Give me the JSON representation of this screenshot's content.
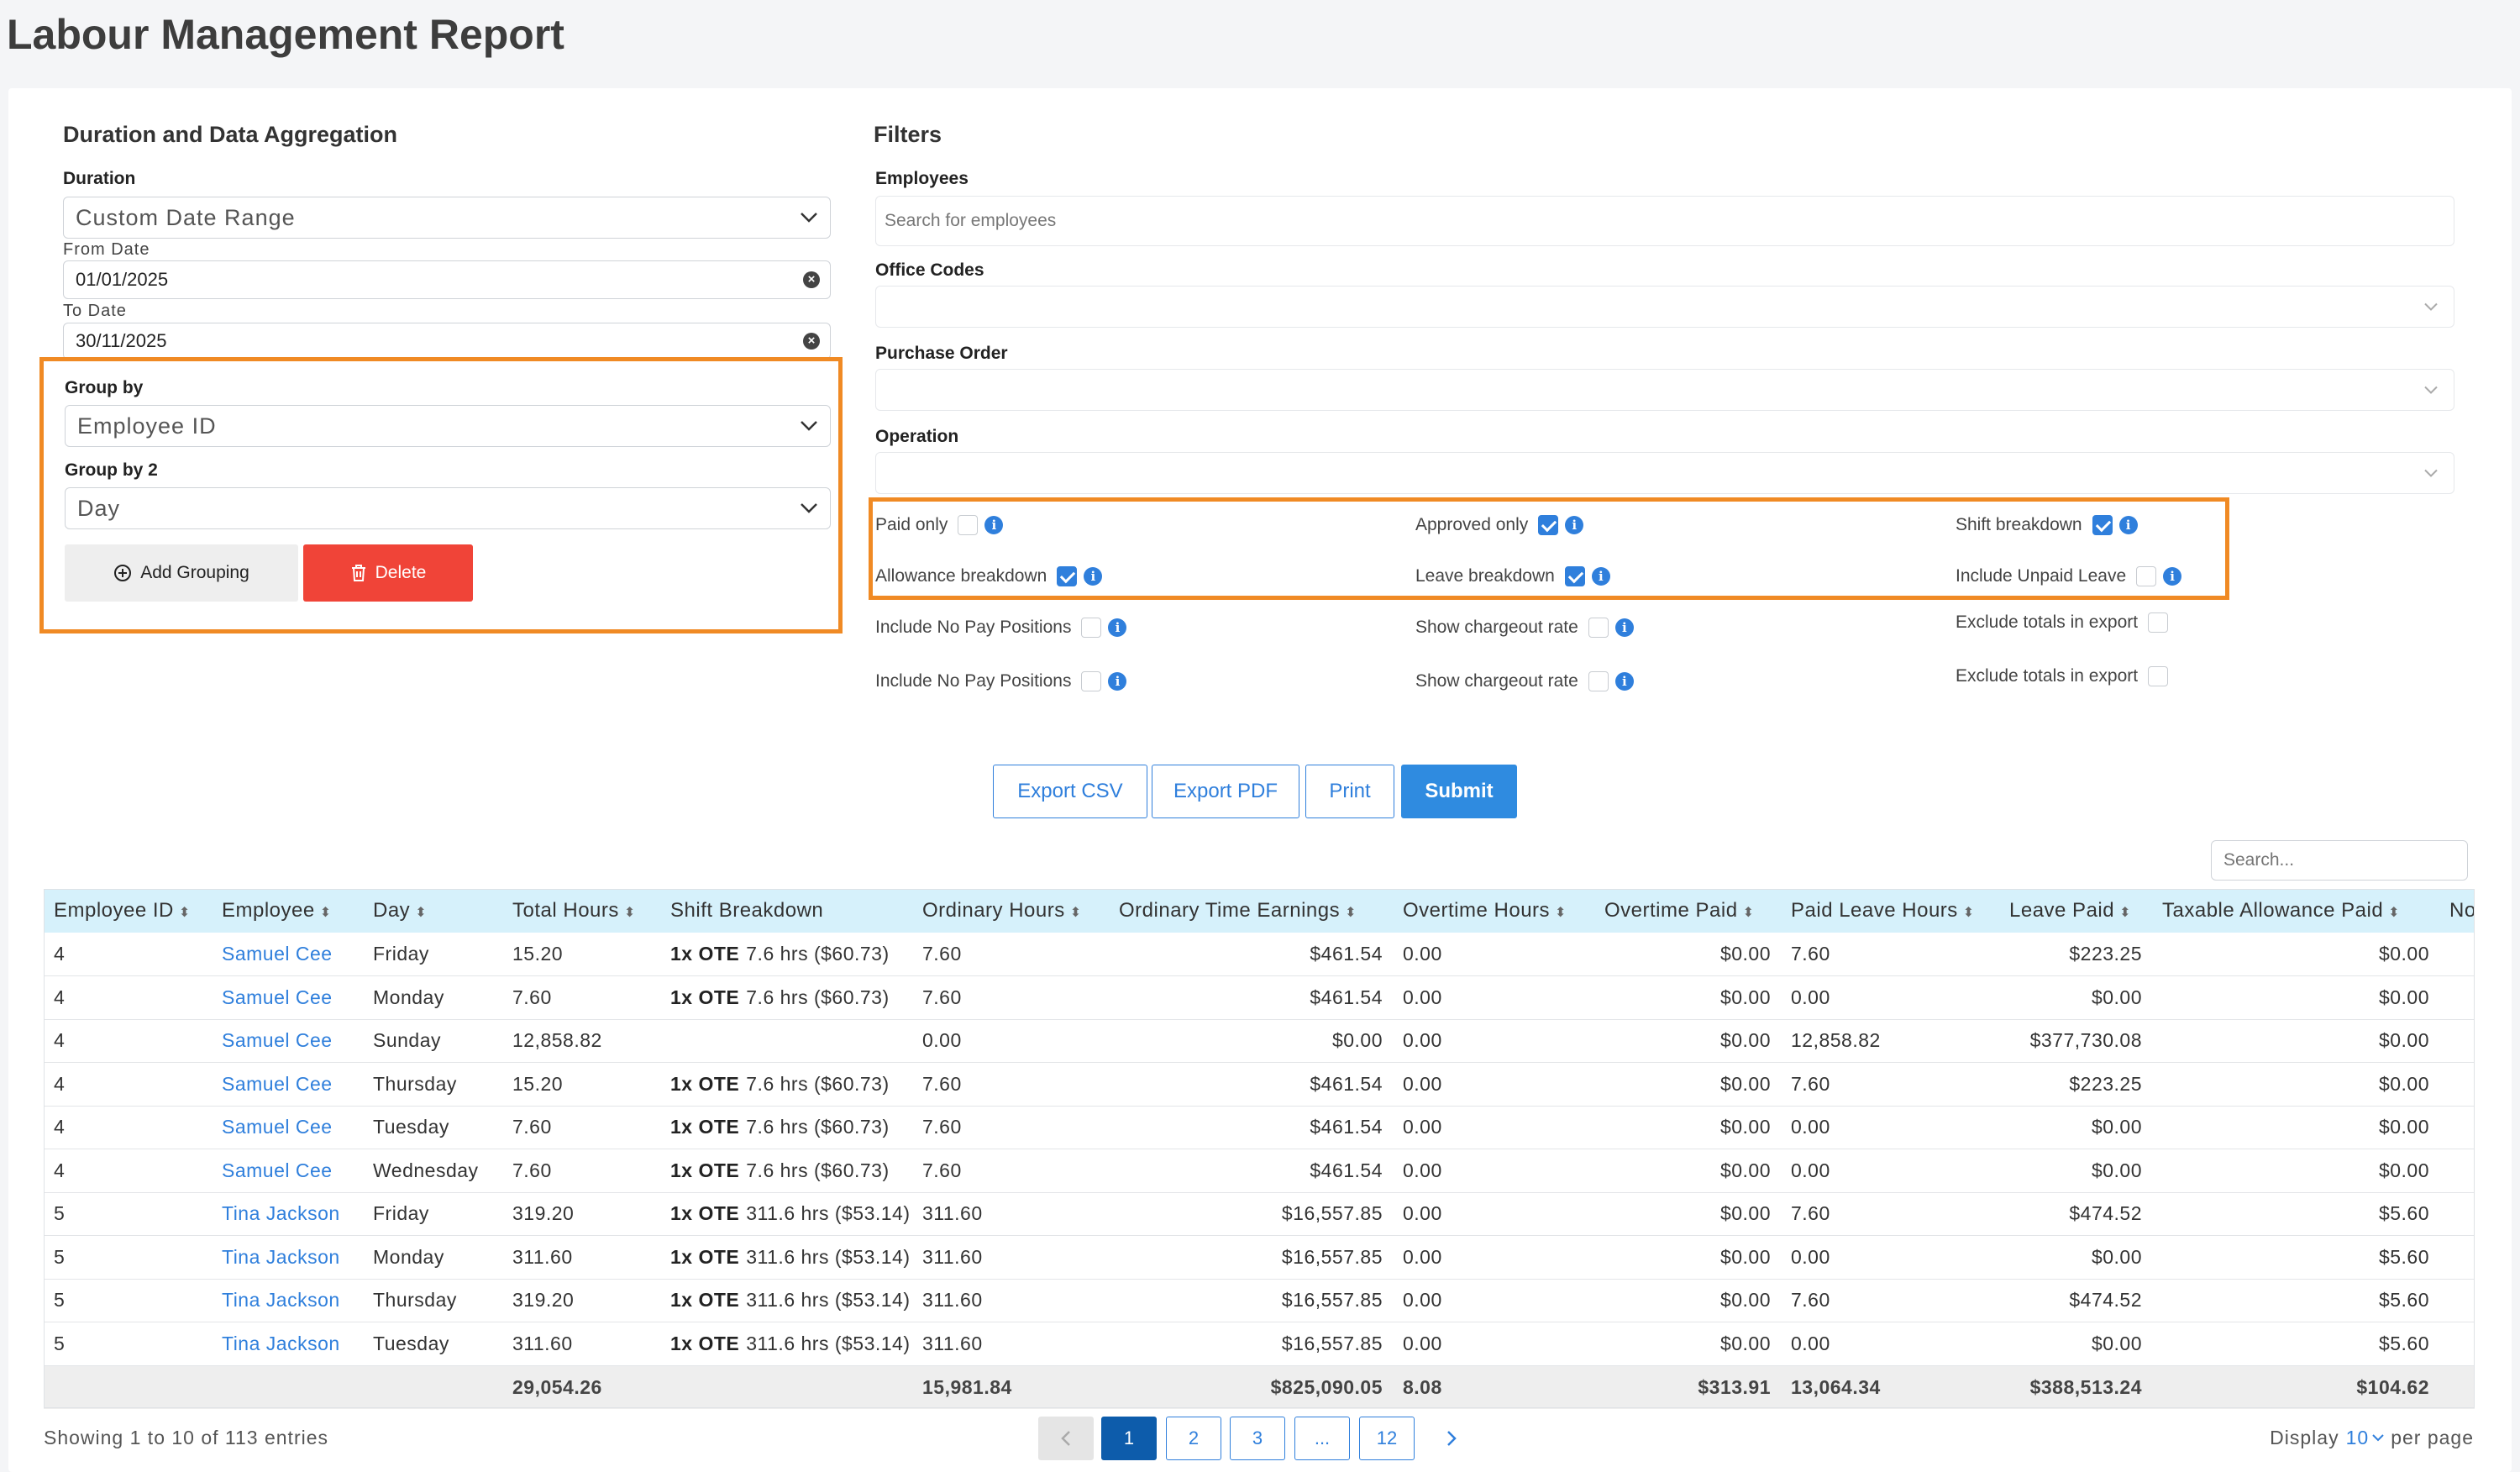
{
  "page": {
    "title": "Labour Management Report"
  },
  "aggregation": {
    "title": "Duration and Data Aggregation",
    "duration_label": "Duration",
    "duration_value": "Custom Date Range",
    "from_label": "From Date",
    "from_value": "01/01/2025",
    "to_label": "To Date",
    "to_value": "30/11/2025",
    "group_by_label": "Group by",
    "group_by_value": "Employee ID",
    "group_by2_label": "Group by 2",
    "group_by2_value": "Day",
    "add_grouping": "Add Grouping",
    "delete": "Delete"
  },
  "filters": {
    "title": "Filters",
    "employees_label": "Employees",
    "employees_placeholder": "Search for employees",
    "office_codes_label": "Office Codes",
    "purchase_order_label": "Purchase Order",
    "operation_label": "Operation",
    "options": [
      {
        "label": "Paid only",
        "checked": false
      },
      {
        "label": "Approved only",
        "checked": true
      },
      {
        "label": "Shift breakdown",
        "checked": true
      },
      {
        "label": "Allowance breakdown",
        "checked": true
      },
      {
        "label": "Leave breakdown",
        "checked": true
      },
      {
        "label": "Include Unpaid Leave",
        "checked": false
      },
      {
        "label": "Include No Pay Positions",
        "checked": false
      },
      {
        "label": "Show chargeout rate",
        "checked": false
      },
      {
        "label": "Exclude totals in export",
        "checked": false
      },
      {
        "label": "Include No Pay Positions",
        "checked": false
      },
      {
        "label": "Show chargeout rate",
        "checked": false
      },
      {
        "label": "Exclude totals in export",
        "checked": false
      }
    ]
  },
  "actions": {
    "export_csv": "Export CSV",
    "export_pdf": "Export PDF",
    "print": "Print",
    "submit": "Submit"
  },
  "table": {
    "search_placeholder": "Search...",
    "columns": [
      "Employee ID",
      "Employee",
      "Day",
      "Total Hours",
      "Shift Breakdown",
      "Ordinary Hours",
      "Ordinary Time Earnings",
      "Overtime Hours",
      "Overtime Paid",
      "Paid Leave Hours",
      "Leave Paid",
      "Taxable Allowance Paid",
      "No"
    ],
    "rows": [
      {
        "id": "4",
        "employee": "Samuel Cee",
        "day": "Friday",
        "total_hours": "15.20",
        "shift_tag": "1x OTE",
        "shift_detail": "7.6 hrs ($60.73)",
        "ordinary_hours": "7.60",
        "ote": "$461.54",
        "overtime_hours": "0.00",
        "overtime_paid": "$0.00",
        "paid_leave_hours": "7.60",
        "leave_paid": "$223.25",
        "taxable_allowance": "$0.00"
      },
      {
        "id": "4",
        "employee": "Samuel Cee",
        "day": "Monday",
        "total_hours": "7.60",
        "shift_tag": "1x OTE",
        "shift_detail": "7.6 hrs ($60.73)",
        "ordinary_hours": "7.60",
        "ote": "$461.54",
        "overtime_hours": "0.00",
        "overtime_paid": "$0.00",
        "paid_leave_hours": "0.00",
        "leave_paid": "$0.00",
        "taxable_allowance": "$0.00"
      },
      {
        "id": "4",
        "employee": "Samuel Cee",
        "day": "Sunday",
        "total_hours": "12,858.82",
        "shift_tag": "",
        "shift_detail": "",
        "ordinary_hours": "0.00",
        "ote": "$0.00",
        "overtime_hours": "0.00",
        "overtime_paid": "$0.00",
        "paid_leave_hours": "12,858.82",
        "leave_paid": "$377,730.08",
        "taxable_allowance": "$0.00"
      },
      {
        "id": "4",
        "employee": "Samuel Cee",
        "day": "Thursday",
        "total_hours": "15.20",
        "shift_tag": "1x OTE",
        "shift_detail": "7.6 hrs ($60.73)",
        "ordinary_hours": "7.60",
        "ote": "$461.54",
        "overtime_hours": "0.00",
        "overtime_paid": "$0.00",
        "paid_leave_hours": "7.60",
        "leave_paid": "$223.25",
        "taxable_allowance": "$0.00"
      },
      {
        "id": "4",
        "employee": "Samuel Cee",
        "day": "Tuesday",
        "total_hours": "7.60",
        "shift_tag": "1x OTE",
        "shift_detail": "7.6 hrs ($60.73)",
        "ordinary_hours": "7.60",
        "ote": "$461.54",
        "overtime_hours": "0.00",
        "overtime_paid": "$0.00",
        "paid_leave_hours": "0.00",
        "leave_paid": "$0.00",
        "taxable_allowance": "$0.00"
      },
      {
        "id": "4",
        "employee": "Samuel Cee",
        "day": "Wednesday",
        "total_hours": "7.60",
        "shift_tag": "1x OTE",
        "shift_detail": "7.6 hrs ($60.73)",
        "ordinary_hours": "7.60",
        "ote": "$461.54",
        "overtime_hours": "0.00",
        "overtime_paid": "$0.00",
        "paid_leave_hours": "0.00",
        "leave_paid": "$0.00",
        "taxable_allowance": "$0.00"
      },
      {
        "id": "5",
        "employee": "Tina Jackson",
        "day": "Friday",
        "total_hours": "319.20",
        "shift_tag": "1x OTE",
        "shift_detail": "311.6 hrs ($53.14)",
        "ordinary_hours": "311.60",
        "ote": "$16,557.85",
        "overtime_hours": "0.00",
        "overtime_paid": "$0.00",
        "paid_leave_hours": "7.60",
        "leave_paid": "$474.52",
        "taxable_allowance": "$5.60"
      },
      {
        "id": "5",
        "employee": "Tina Jackson",
        "day": "Monday",
        "total_hours": "311.60",
        "shift_tag": "1x OTE",
        "shift_detail": "311.6 hrs ($53.14)",
        "ordinary_hours": "311.60",
        "ote": "$16,557.85",
        "overtime_hours": "0.00",
        "overtime_paid": "$0.00",
        "paid_leave_hours": "0.00",
        "leave_paid": "$0.00",
        "taxable_allowance": "$5.60"
      },
      {
        "id": "5",
        "employee": "Tina Jackson",
        "day": "Thursday",
        "total_hours": "319.20",
        "shift_tag": "1x OTE",
        "shift_detail": "311.6 hrs ($53.14)",
        "ordinary_hours": "311.60",
        "ote": "$16,557.85",
        "overtime_hours": "0.00",
        "overtime_paid": "$0.00",
        "paid_leave_hours": "7.60",
        "leave_paid": "$474.52",
        "taxable_allowance": "$5.60"
      },
      {
        "id": "5",
        "employee": "Tina Jackson",
        "day": "Tuesday",
        "total_hours": "311.60",
        "shift_tag": "1x OTE",
        "shift_detail": "311.6 hrs ($53.14)",
        "ordinary_hours": "311.60",
        "ote": "$16,557.85",
        "overtime_hours": "0.00",
        "overtime_paid": "$0.00",
        "paid_leave_hours": "0.00",
        "leave_paid": "$0.00",
        "taxable_allowance": "$5.60"
      }
    ],
    "totals": {
      "total_hours": "29,054.26",
      "ordinary_hours": "15,981.84",
      "ote": "$825,090.05",
      "overtime_hours": "8.08",
      "overtime_paid": "$313.91",
      "paid_leave_hours": "13,064.34",
      "leave_paid": "$388,513.24",
      "taxable_allowance": "$104.62"
    }
  },
  "pagination": {
    "entries_text": "Showing 1 to 10 of 113 entries",
    "pages": [
      "1",
      "2",
      "3",
      "...",
      "12"
    ],
    "active_page": "1",
    "display_label": "Display",
    "per_page_value": "10",
    "per_page_label": "per page"
  }
}
